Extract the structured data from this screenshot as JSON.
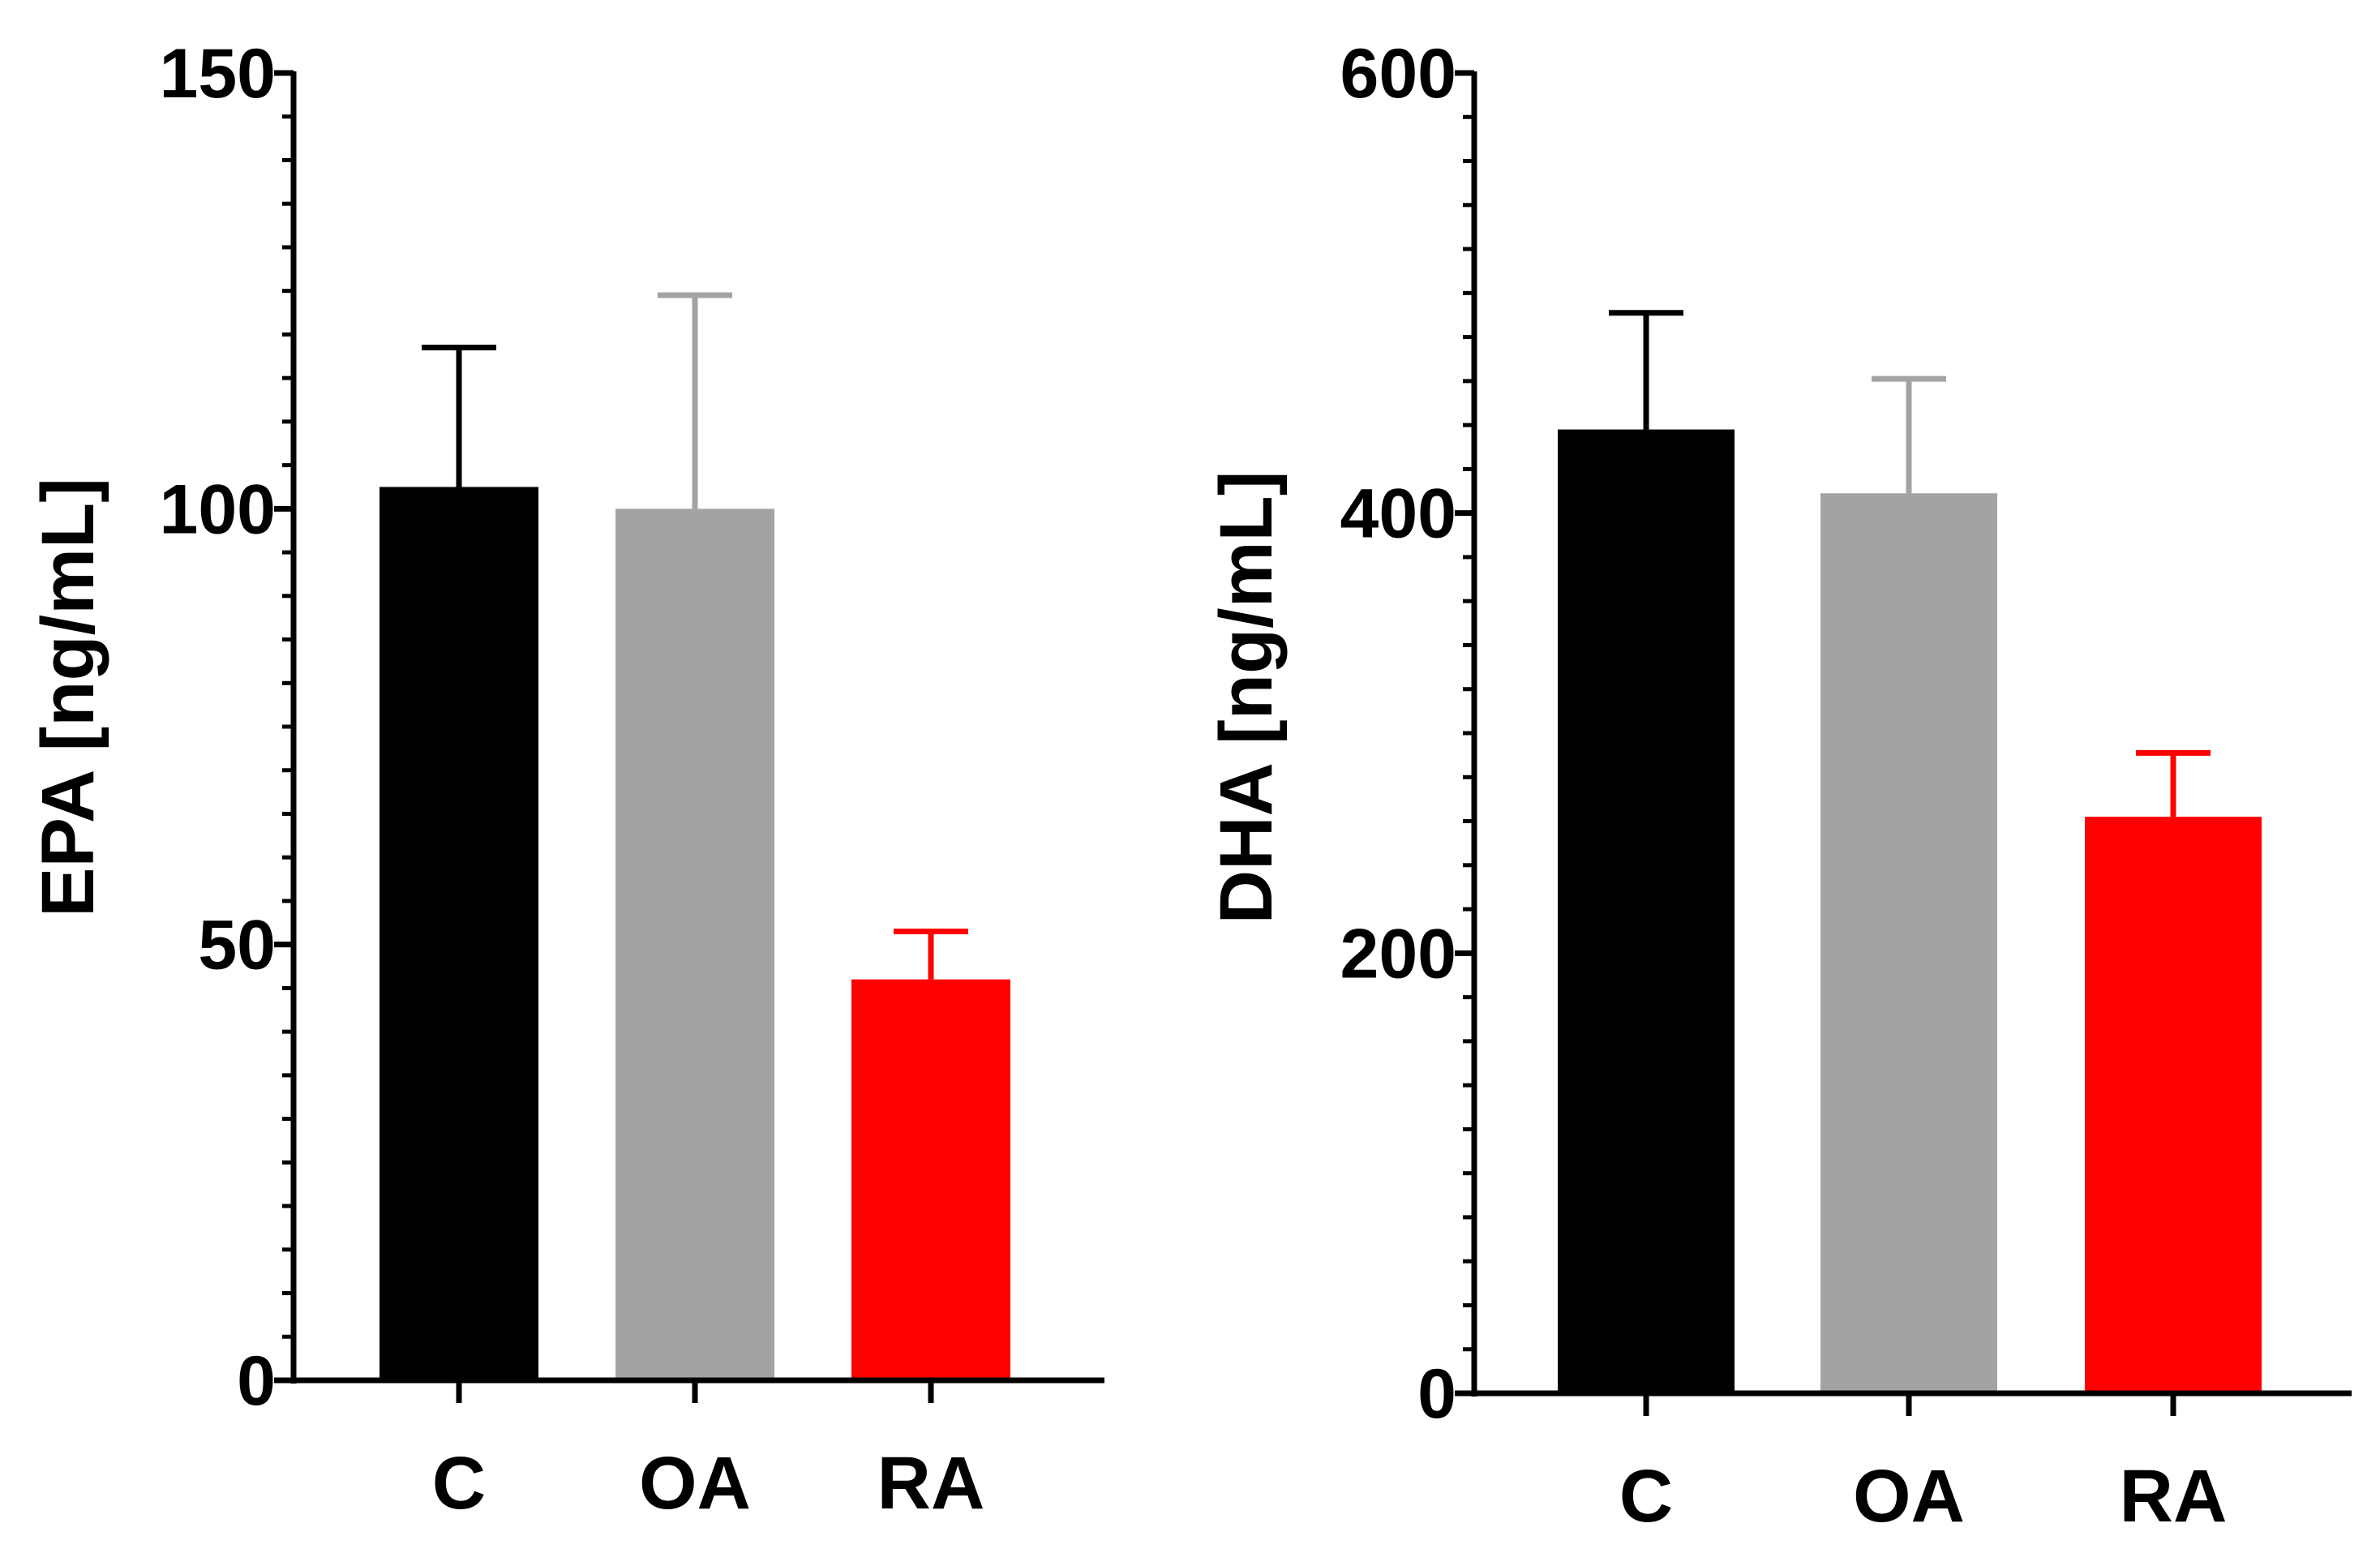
{
  "colors": {
    "C": "#000000",
    "OA": "#a3a3a6",
    "RA": "#ff0000",
    "axis": "#000000"
  },
  "chart_data": [
    {
      "type": "bar",
      "title": "",
      "xlabel": "",
      "ylabel": "EPA [ng/mL]",
      "ylim": [
        0,
        150
      ],
      "yticks": [
        0,
        50,
        100,
        150
      ],
      "ytick_labels": [
        "0",
        "50",
        "100",
        "150"
      ],
      "minor_tick_step": 5,
      "categories": [
        "C",
        "OA",
        "RA"
      ],
      "values": [
        102.5,
        100,
        46
      ],
      "error_plus": [
        16,
        24.5,
        5.5
      ],
      "bar_colors": [
        "#000000",
        "#a3a3a6",
        "#ff0000"
      ],
      "grid": false,
      "legend": "none"
    },
    {
      "type": "bar",
      "title": "",
      "xlabel": "",
      "ylabel": "DHA [ng/mL]",
      "ylim": [
        0,
        600
      ],
      "yticks": [
        0,
        200,
        400,
        600
      ],
      "ytick_labels": [
        "0",
        "200",
        "400",
        "600"
      ],
      "minor_tick_step": 20,
      "categories": [
        "C",
        "OA",
        "RA"
      ],
      "values": [
        438,
        409,
        262
      ],
      "error_plus": [
        53,
        52,
        29
      ],
      "bar_colors": [
        "#000000",
        "#a3a3a6",
        "#ff0000"
      ],
      "grid": false,
      "legend": "none"
    }
  ]
}
